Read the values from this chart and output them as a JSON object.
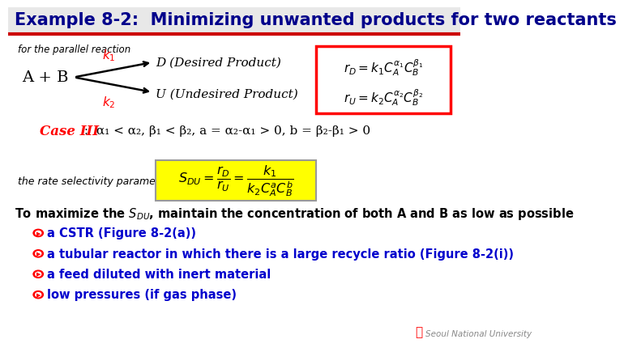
{
  "title": "Example 8-2:  Minimizing unwanted products for two reactants",
  "title_color": "#00008B",
  "title_fontsize": 15,
  "bg_color": "#E8E8E8",
  "slide_bg": "#FFFFFF",
  "red_line_color": "#CC0000",
  "parallel_text": "for the parallel reaction",
  "reactant": "A + B",
  "desired": "D (Desired Product)",
  "undesired": "U (Undesired Product)",
  "case_text_red": "Case III",
  "case_text_black": " :  α₁ < α₂, β₁ < β₂, a = α₂-α₁ > 0, b = β₂-β₁ > 0",
  "rate_label": "the rate selectivity parameter",
  "bullets": [
    "a CSTR (Figure 8-2(a))",
    "a tubular reactor in which there is a large recycle ratio (Figure 8-2(i))",
    "a feed diluted with inert material",
    "low pressures (if gas phase)"
  ],
  "bullet_color": "#0000CD",
  "footer": "Seoul National University"
}
